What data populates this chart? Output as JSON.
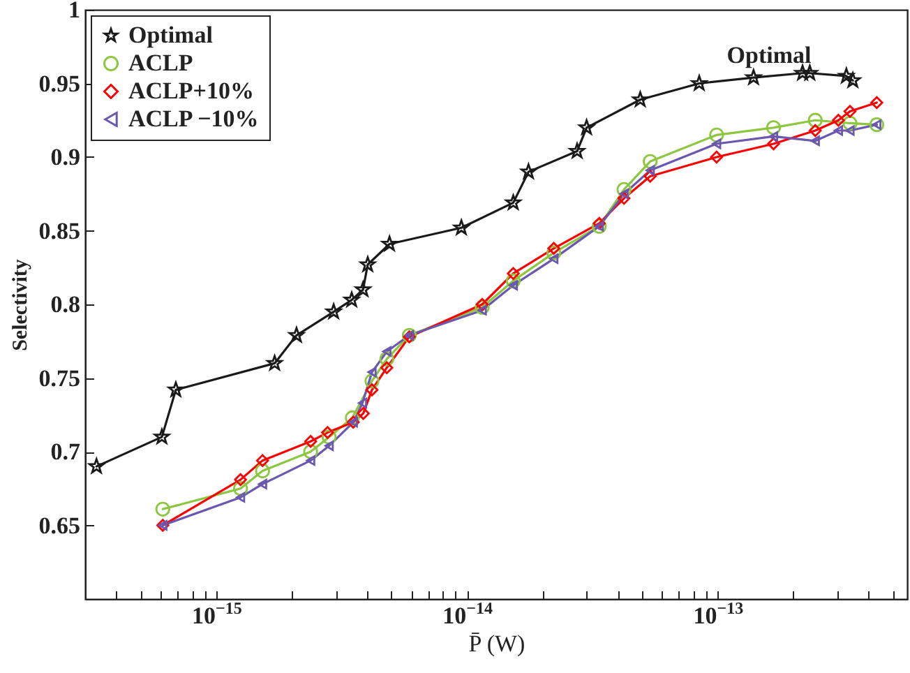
{
  "chart_data": {
    "type": "line",
    "xlabel": "P̄ (W)",
    "ylabel": "Selectivity",
    "log": "x",
    "grid": false,
    "legend": "top left",
    "line_style": "solid",
    "xlim": [
      3e-16,
      5.7e-13
    ],
    "ylim": [
      0.6,
      1
    ],
    "xticks": [
      {
        "value": 4e-16,
        "label": null
      },
      {
        "value": 5e-16,
        "label": null
      },
      {
        "value": 6e-16,
        "label": null
      },
      {
        "value": 7e-16,
        "label": null
      },
      {
        "value": 8e-16,
        "label": null
      },
      {
        "value": 9e-16,
        "label": null
      },
      {
        "value": 1e-15,
        "label": "10$^{−15}$"
      },
      {
        "value": 2e-15,
        "label": null
      },
      {
        "value": 3e-15,
        "label": null
      },
      {
        "value": 4e-15,
        "label": null
      },
      {
        "value": 5e-15,
        "label": null
      },
      {
        "value": 6e-15,
        "label": null
      },
      {
        "value": 7e-15,
        "label": null
      },
      {
        "value": 8e-15,
        "label": null
      },
      {
        "value": 9e-15,
        "label": null
      },
      {
        "value": 1e-14,
        "label": "10$^{−14}$"
      },
      {
        "value": 2e-14,
        "label": null
      },
      {
        "value": 3e-14,
        "label": null
      },
      {
        "value": 4e-14,
        "label": null
      },
      {
        "value": 5e-14,
        "label": null
      },
      {
        "value": 6e-14,
        "label": null
      },
      {
        "value": 7e-14,
        "label": null
      },
      {
        "value": 8e-14,
        "label": null
      },
      {
        "value": 9e-14,
        "label": null
      },
      {
        "value": 1e-13,
        "label": "10$^{−13}$"
      },
      {
        "value": 2e-13,
        "label": null
      },
      {
        "value": 3e-13,
        "label": null
      },
      {
        "value": 4e-13,
        "label": null
      },
      {
        "value": 5e-13,
        "label": null
      }
    ],
    "yticks": [
      0.65,
      0.7,
      0.75,
      0.8,
      0.85,
      0.9,
      0.95,
      1
    ],
    "series": [
      {
        "name": "Optimal",
        "color": "#1a1a1a",
        "marker": "star",
        "x": [
          3.33e-16,
          6.07e-16,
          6.9e-16,
          1.71e-15,
          2.09e-15,
          2.94e-15,
          3.47e-15,
          3.85e-15,
          4.02e-15,
          4.91e-15,
          9.5e-15,
          1.53e-14,
          1.76e-14,
          2.75e-14,
          3e-14,
          4.91e-14,
          8.44e-14,
          1.39e-13,
          2.18e-13,
          2.33e-13,
          3.26e-13,
          3.46e-13
        ],
        "values": [
          0.69,
          0.71,
          0.742,
          0.76,
          0.779,
          0.795,
          0.803,
          0.81,
          0.827,
          0.841,
          0.852,
          0.869,
          0.89,
          0.904,
          0.92,
          0.939,
          0.95,
          0.954,
          0.957,
          0.957,
          0.955,
          0.952
        ]
      },
      {
        "name": "ACLP",
        "color": "#8dc63f",
        "marker": "circle",
        "x": [
          6.12e-16,
          1.25e-15,
          1.53e-15,
          2.38e-15,
          2.82e-15,
          3.49e-15,
          4.18e-15,
          4.79e-15,
          5.89e-15,
          1.15e-14,
          1.53e-14,
          2.22e-14,
          3.37e-14,
          4.23e-14,
          5.38e-14,
          9.9e-14,
          1.67e-13,
          2.45e-13,
          3.37e-13,
          4.31e-13
        ],
        "values": [
          0.661,
          0.675,
          0.687,
          0.7,
          0.71,
          0.723,
          0.748,
          0.763,
          0.779,
          0.798,
          0.816,
          0.835,
          0.853,
          0.878,
          0.897,
          0.915,
          0.92,
          0.925,
          0.923,
          0.922
        ]
      },
      {
        "name": "ACLP+10%",
        "color": "#ff0000",
        "marker": "diamond",
        "x": [
          6.12e-16,
          1.25e-15,
          1.53e-15,
          2.38e-15,
          2.78e-15,
          3.52e-15,
          3.86e-15,
          4.18e-15,
          4.79e-15,
          5.89e-15,
          1.15e-14,
          1.53e-14,
          2.22e-14,
          3.37e-14,
          4.23e-14,
          5.38e-14,
          9.9e-14,
          1.67e-13,
          2.45e-13,
          3.03e-13,
          3.37e-13,
          4.31e-13
        ],
        "values": [
          0.65,
          0.681,
          0.694,
          0.707,
          0.713,
          0.72,
          0.726,
          0.742,
          0.757,
          0.778,
          0.8,
          0.821,
          0.838,
          0.855,
          0.872,
          0.887,
          0.9,
          0.909,
          0.918,
          0.925,
          0.931,
          0.937
        ]
      },
      {
        "name": "ACLP −10%",
        "color": "#6a58b0",
        "marker": "triangle",
        "x": [
          6.12e-16,
          1.25e-15,
          1.53e-15,
          2.38e-15,
          2.82e-15,
          3.52e-15,
          3.83e-15,
          4.18e-15,
          4.79e-15,
          5.89e-15,
          1.15e-14,
          1.53e-14,
          2.22e-14,
          3.37e-14,
          4.23e-14,
          5.38e-14,
          9.9e-14,
          1.67e-13,
          2.45e-13,
          3.03e-13,
          3.37e-13,
          4.31e-13
        ],
        "values": [
          0.65,
          0.669,
          0.678,
          0.694,
          0.704,
          0.72,
          0.733,
          0.754,
          0.768,
          0.779,
          0.796,
          0.813,
          0.831,
          0.853,
          0.875,
          0.891,
          0.909,
          0.914,
          0.911,
          0.918,
          0.918,
          0.922
        ]
      }
    ],
    "annotations": [
      "Optimal"
    ]
  }
}
